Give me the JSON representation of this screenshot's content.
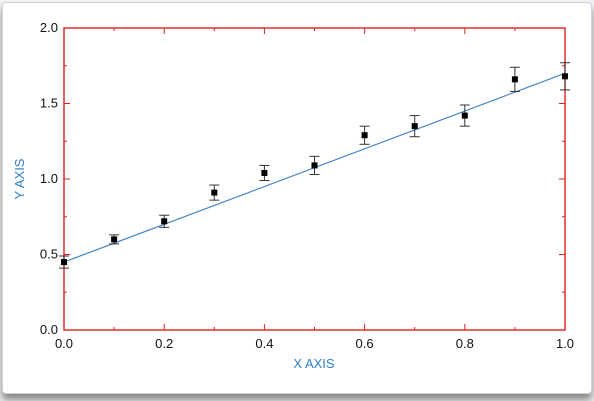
{
  "chart_data": {
    "type": "scatter",
    "xlabel": "X AXIS",
    "ylabel": "Y AXIS",
    "xlim": [
      0,
      1
    ],
    "ylim": [
      0,
      2
    ],
    "x_ticks": [
      "0.0",
      "0.2",
      "0.4",
      "0.6",
      "0.8",
      "1.0"
    ],
    "y_ticks": [
      "0.0",
      "0.5",
      "1.0",
      "1.5",
      "2.0"
    ],
    "grid": false,
    "legend": "none",
    "frame_color": "#e02020",
    "fit_line_color": "#4a86c8",
    "marker_color": "#000000",
    "series": [
      {
        "x": [
          0.0,
          0.1,
          0.2,
          0.3,
          0.4,
          0.5,
          0.6,
          0.7,
          0.8,
          0.9,
          1.0
        ],
        "y": [
          0.45,
          0.6,
          0.72,
          0.91,
          1.04,
          1.09,
          1.29,
          1.35,
          1.42,
          1.66,
          1.68
        ],
        "err": [
          0.04,
          0.03,
          0.04,
          0.05,
          0.05,
          0.06,
          0.06,
          0.07,
          0.07,
          0.08,
          0.09
        ]
      }
    ],
    "fit_line": {
      "x": [
        0.0,
        1.0
      ],
      "y": [
        0.45,
        1.7
      ]
    }
  }
}
